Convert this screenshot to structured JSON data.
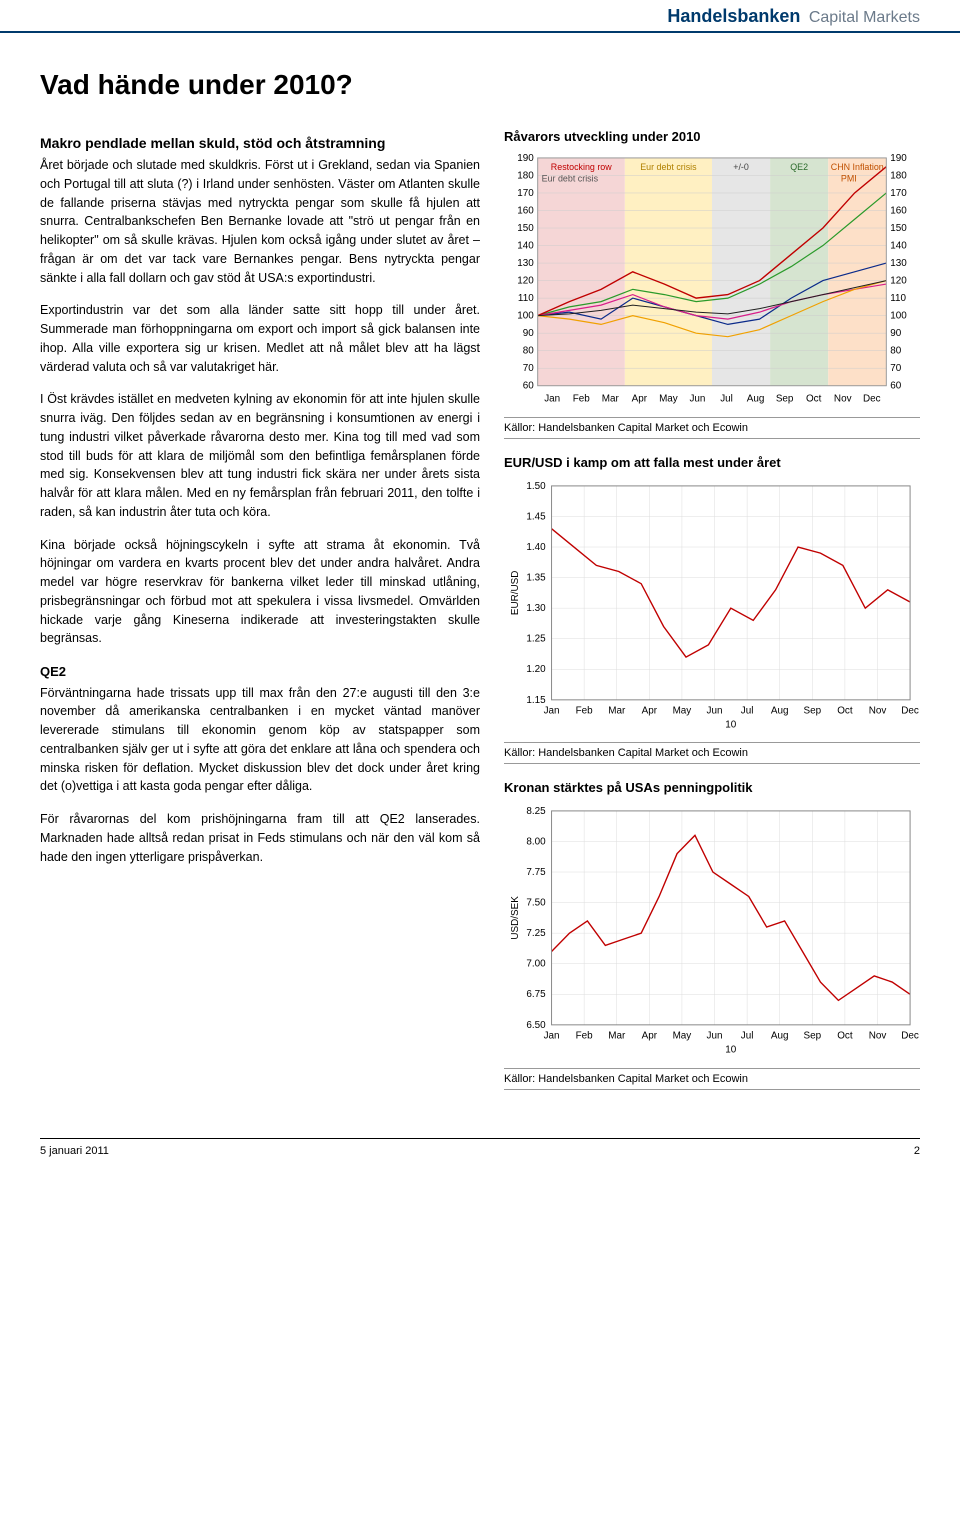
{
  "brand": {
    "name": "Handelsbanken",
    "sub": "Capital Markets"
  },
  "title": "Vad hände under 2010?",
  "sections": {
    "intro_heading": "Makro pendlade mellan skuld, stöd och åtstramning",
    "p1": "Året började och slutade med skuldkris. Först ut i Grekland, sedan via Spanien och Portugal till att sluta (?) i Irland under senhösten. Väster om Atlanten skulle de fallande priserna stävjas med nytryckta pengar som skulle få hjulen att snurra. Centralbankschefen Ben Bernanke lovade att \"strö ut pengar från en helikopter\" om så skulle krävas. Hjulen kom också igång under slutet av året – frågan är om det var tack vare Bernankes pengar. Bens nytryckta pengar sänkte i alla fall dollarn och gav stöd åt USA:s exportindustri.",
    "p2": "Exportindustrin var det som alla länder satte sitt hopp till under året. Summerade man förhoppningarna om export och import så gick balansen inte ihop. Alla ville exportera sig ur krisen. Medlet att nå målet blev att ha lägst värderad valuta och så var valutakriget här.",
    "p3": "I Öst krävdes istället en medveten kylning av ekonomin för att inte hjulen skulle snurra iväg. Den följdes sedan av en begränsning i konsumtionen av energi i tung industri vilket påverkade råvarorna desto mer. Kina tog till med vad som stod till buds för att klara de miljömål som den befintliga femårsplanen förde med sig. Konsekvensen blev att tung industri fick skära ner under årets sista halvår för att klara målen. Med en ny femårsplan från februari 2011, den tolfte i raden, så kan industrin åter tuta och köra.",
    "p4": "Kina började också höjningscykeln i syfte att strama åt ekonomin. Två höjningar om vardera en kvarts procent blev det under andra halvåret. Andra medel var högre reservkrav för bankerna vilket leder till minskad utlåning, prisbegränsningar och förbud mot att spekulera i vissa livsmedel. Omvärlden hickade varje gång Kineserna indikerade att investeringstakten skulle begränsas.",
    "qe2_heading": "QE2",
    "p5": "Förväntningarna hade trissats upp till max från den 27:e augusti till den 3:e november då amerikanska centralbanken i en mycket väntad manöver levererade stimulans till ekonomin genom köp av statspapper som centralbanken själv ger ut i syfte att göra det enklare att låna och spendera och minska risken för deflation. Mycket diskussion blev det dock under året kring det (o)vettiga i att kasta goda pengar efter dåliga.",
    "p6": "För råvarornas del kom prishöjningarna fram till att QE2 lanserades. Marknaden hade alltså redan prisat in Feds stimulans och när den väl kom så hade den ingen ytterligare prispåverkan."
  },
  "chart1": {
    "title": "Råvarors utveckling under 2010",
    "type": "line",
    "ylim": [
      60,
      190
    ],
    "ytick_step": 10,
    "months": [
      "Jan",
      "Feb",
      "Mar",
      "Apr",
      "May",
      "Jun",
      "Jul",
      "Aug",
      "Sep",
      "Oct",
      "Nov",
      "Dec"
    ],
    "bands": [
      {
        "label": "Restocking row",
        "from": 0,
        "to": 3,
        "fill": "#f5d6d6",
        "text_color": "#c00000"
      },
      {
        "label": "Eur debt crisis",
        "from": 3,
        "to": 6,
        "fill": "#fff0c2",
        "text_color": "#b08000"
      },
      {
        "label": "+/-0",
        "from": 6,
        "to": 8,
        "fill": "#e6e6e6",
        "text_color": "#444444"
      },
      {
        "label": "QE2",
        "from": 8,
        "to": 10,
        "fill": "#d6e4d0",
        "text_color": "#2a6a2a"
      },
      {
        "label": "CHN Inflation",
        "from": 10,
        "to": 12,
        "fill": "#fde0c8",
        "text_color": "#c05000"
      }
    ],
    "sub_labels": [
      {
        "text": "Eur debt crisis",
        "x": 0,
        "color": "#555"
      },
      {
        "text": "PMI",
        "x": 10.3,
        "color": "#c05000"
      }
    ],
    "series": [
      {
        "color": "#0a2a8a",
        "width": 1.2,
        "values": [
          100,
          102,
          98,
          110,
          105,
          100,
          95,
          98,
          110,
          120,
          125,
          130
        ]
      },
      {
        "color": "#2a9a2a",
        "width": 1.2,
        "values": [
          100,
          105,
          108,
          115,
          112,
          108,
          110,
          118,
          128,
          140,
          155,
          170
        ]
      },
      {
        "color": "#d81e8a",
        "width": 1.2,
        "values": [
          100,
          103,
          106,
          112,
          105,
          100,
          98,
          102,
          108,
          112,
          115,
          118
        ]
      },
      {
        "color": "#c00000",
        "width": 1.4,
        "values": [
          100,
          108,
          115,
          125,
          118,
          110,
          112,
          120,
          135,
          150,
          170,
          185
        ]
      },
      {
        "color": "#f0a000",
        "width": 1.2,
        "values": [
          100,
          98,
          95,
          100,
          96,
          90,
          88,
          92,
          100,
          108,
          115,
          120
        ]
      },
      {
        "color": "#202020",
        "width": 1.0,
        "values": [
          100,
          101,
          103,
          106,
          104,
          102,
          101,
          104,
          108,
          112,
          116,
          120
        ]
      }
    ],
    "grid_color": "#cccccc",
    "label_fontsize": 10,
    "source": "Källor: Handelsbanken Capital Market och Ecowin"
  },
  "chart2": {
    "title": "EUR/USD i kamp om att falla mest under året",
    "type": "line",
    "ylabel": "EUR/USD",
    "ylim": [
      1.15,
      1.5
    ],
    "yticks": [
      1.15,
      1.2,
      1.25,
      1.3,
      1.35,
      1.4,
      1.45,
      1.5
    ],
    "months": [
      "Jan",
      "Feb",
      "Mar",
      "Apr",
      "May",
      "Jun",
      "Jul",
      "Aug",
      "Sep",
      "Oct",
      "Nov",
      "Dec"
    ],
    "xaxis_year": "10",
    "series": [
      {
        "color": "#c00000",
        "width": 1.4,
        "values": [
          1.43,
          1.4,
          1.37,
          1.36,
          1.34,
          1.27,
          1.22,
          1.24,
          1.3,
          1.28,
          1.33,
          1.4,
          1.39,
          1.37,
          1.3,
          1.33,
          1.31
        ]
      }
    ],
    "grid_color": "#dddddd",
    "label_fontsize": 10,
    "source": "Källor: Handelsbanken Capital Market och Ecowin"
  },
  "chart3": {
    "title": "Kronan stärktes på USAs penningpolitik",
    "type": "line",
    "ylabel": "USD/SEK",
    "ylim": [
      6.5,
      8.25
    ],
    "yticks": [
      6.5,
      6.75,
      7.0,
      7.25,
      7.5,
      7.75,
      8.0,
      8.25
    ],
    "months": [
      "Jan",
      "Feb",
      "Mar",
      "Apr",
      "May",
      "Jun",
      "Jul",
      "Aug",
      "Sep",
      "Oct",
      "Nov",
      "Dec"
    ],
    "xaxis_year": "10",
    "series": [
      {
        "color": "#c00000",
        "width": 1.4,
        "values": [
          7.1,
          7.25,
          7.35,
          7.15,
          7.2,
          7.25,
          7.55,
          7.9,
          8.05,
          7.75,
          7.65,
          7.55,
          7.3,
          7.35,
          7.1,
          6.85,
          6.7,
          6.8,
          6.9,
          6.85,
          6.75
        ]
      }
    ],
    "grid_color": "#dddddd",
    "label_fontsize": 10,
    "source": "Källor: Handelsbanken Capital Market och Ecowin"
  },
  "footer": {
    "date": "5 januari 2011",
    "page": "2"
  }
}
